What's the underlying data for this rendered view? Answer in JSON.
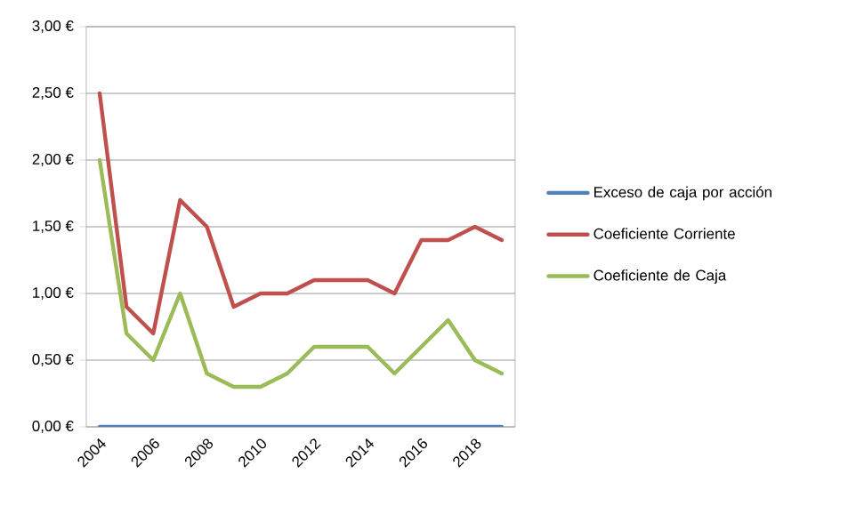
{
  "chart_data": {
    "type": "line",
    "categories": [
      "2004",
      null,
      "2006",
      null,
      "2008",
      null,
      "2010",
      null,
      "2012",
      null,
      "2014",
      null,
      "2016",
      null,
      "2018",
      null
    ],
    "series": [
      {
        "name": "Exceso de caja por acción",
        "color": "#4f81bd",
        "values": [
          0,
          0,
          0,
          0,
          0,
          0,
          0,
          0,
          0,
          0,
          0,
          0,
          0,
          0,
          0,
          0
        ]
      },
      {
        "name": "Coeficiente Corriente",
        "color": "#c0504d",
        "values": [
          2.5,
          0.9,
          0.7,
          1.7,
          1.5,
          0.9,
          1.0,
          1.0,
          1.1,
          1.1,
          1.1,
          1.0,
          1.4,
          1.4,
          1.5,
          1.4
        ]
      },
      {
        "name": "Coeficiente de Caja",
        "color": "#9bbb59",
        "values": [
          2.0,
          0.7,
          0.5,
          1.0,
          0.4,
          0.3,
          0.3,
          0.4,
          0.6,
          0.6,
          0.6,
          0.4,
          0.6,
          0.8,
          0.5,
          0.4
        ]
      }
    ],
    "ylim": [
      0,
      3
    ],
    "yticks": [
      {
        "value": 0,
        "label": "0,00 €"
      },
      {
        "value": 0.5,
        "label": "0,50 €"
      },
      {
        "value": 1,
        "label": "1,00 €"
      },
      {
        "value": 1.5,
        "label": "1,50 €"
      },
      {
        "value": 2,
        "label": "2,00 €"
      },
      {
        "value": 2.5,
        "label": "2,50 €"
      },
      {
        "value": 3,
        "label": "3,00 €"
      }
    ],
    "grid": "y",
    "legend": "right",
    "marker": "none",
    "line_style": "solid"
  }
}
